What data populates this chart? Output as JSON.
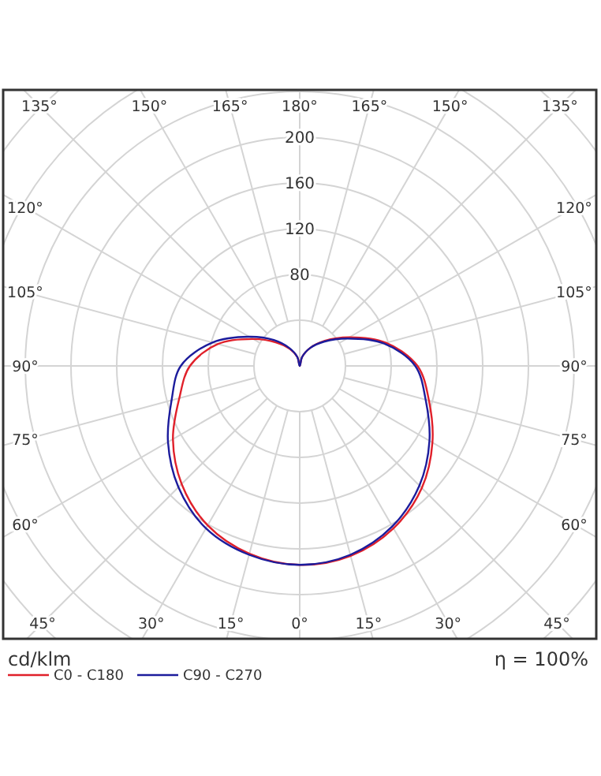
{
  "chart_data": {
    "type": "radar",
    "categories": [
      "180°",
      "165°",
      "150°",
      "135°",
      "120°",
      "105°",
      "90°",
      "75°",
      "60°",
      "45°",
      "30°",
      "15°",
      "0°",
      "15°",
      "30°",
      "45°",
      "60°",
      "75°",
      "90°",
      "105°",
      "120°",
      "135°",
      "150°",
      "165°"
    ],
    "series": [
      {
        "name": "C0 - C180",
        "color": "#e0202a",
        "values": [
          0,
          8,
          18,
          31,
          50,
          78,
          103,
          117,
          134,
          151,
          164,
          172,
          174,
          170,
          161,
          146,
          128,
          109,
          96,
          74,
          47,
          29,
          17,
          8
        ]
      },
      {
        "name": "C90 - C270",
        "color": "#1c1c9c",
        "values": [
          0,
          8,
          18,
          30,
          48,
          76,
          101,
          114,
          131,
          148,
          162,
          171,
          174,
          171,
          164,
          150,
          133,
          116,
          104,
          79,
          51,
          32,
          18,
          8
        ]
      }
    ],
    "ylim": [
      0,
      320
    ],
    "yticks": [
      80,
      120,
      160,
      200
    ],
    "grid": true,
    "legend": "bottom",
    "annotations": [
      "cd/klm",
      "η = 100%"
    ]
  }
}
